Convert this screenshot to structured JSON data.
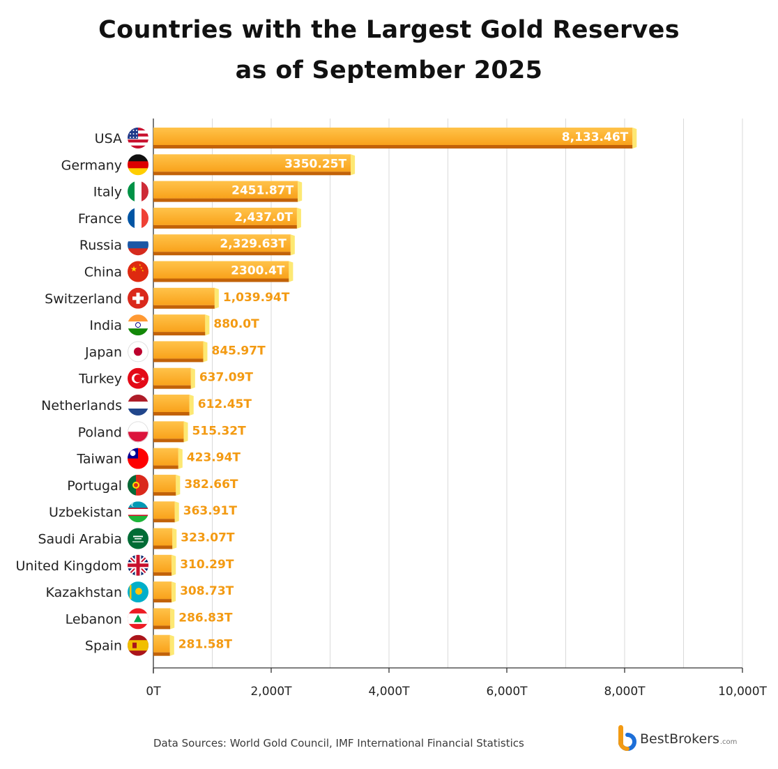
{
  "colors": {
    "bar_top": "#f9a21b",
    "bar_light": "#ffc34a",
    "bar_bottom": "#c26208",
    "bar_end": "#fde873",
    "value_inside": "#ffffff",
    "value_outside": "#f39a12",
    "grid": "#d9d9d9",
    "axis": "#333333",
    "logo_orange": "#f39a12",
    "logo_blue": "#1d6fd8"
  },
  "chart_data": {
    "type": "bar",
    "orientation": "horizontal",
    "title": "Countries with the Largest Gold Reserves as of September 2025",
    "title_lines": [
      "Countries with the Largest Gold Reserves",
      "as of September 2025"
    ],
    "xlim": [
      0,
      10000
    ],
    "xticks": [
      0,
      2000,
      4000,
      6000,
      8000,
      10000
    ],
    "xtick_labels": [
      "0T",
      "2,000T",
      "4,000T",
      "6,000T",
      "8,000T",
      "10,000T"
    ],
    "grid": true,
    "bars": [
      {
        "country": "USA",
        "flag": "usa-flag-icon",
        "value": 8133.46,
        "label": "8,133.46T"
      },
      {
        "country": "Germany",
        "flag": "germany-flag-icon",
        "value": 3350.25,
        "label": "3350.25T"
      },
      {
        "country": "Italy",
        "flag": "italy-flag-icon",
        "value": 2451.87,
        "label": "2451.87T"
      },
      {
        "country": "France",
        "flag": "france-flag-icon",
        "value": 2437.0,
        "label": "2,437.0T"
      },
      {
        "country": "Russia",
        "flag": "russia-flag-icon",
        "value": 2329.63,
        "label": "2,329.63T"
      },
      {
        "country": "China",
        "flag": "china-flag-icon",
        "value": 2300.4,
        "label": "2300.4T"
      },
      {
        "country": "Switzerland",
        "flag": "switzerland-flag-icon",
        "value": 1039.94,
        "label": "1,039.94T"
      },
      {
        "country": "India",
        "flag": "india-flag-icon",
        "value": 880.0,
        "label": "880.0T"
      },
      {
        "country": "Japan",
        "flag": "japan-flag-icon",
        "value": 845.97,
        "label": "845.97T"
      },
      {
        "country": "Turkey",
        "flag": "turkey-flag-icon",
        "value": 637.09,
        "label": "637.09T"
      },
      {
        "country": "Netherlands",
        "flag": "netherlands-flag-icon",
        "value": 612.45,
        "label": "612.45T"
      },
      {
        "country": "Poland",
        "flag": "poland-flag-icon",
        "value": 515.32,
        "label": "515.32T"
      },
      {
        "country": "Taiwan",
        "flag": "taiwan-flag-icon",
        "value": 423.94,
        "label": "423.94T"
      },
      {
        "country": "Portugal",
        "flag": "portugal-flag-icon",
        "value": 382.66,
        "label": "382.66T"
      },
      {
        "country": "Uzbekistan",
        "flag": "uzbekistan-flag-icon",
        "value": 363.91,
        "label": "363.91T"
      },
      {
        "country": "Saudi Arabia",
        "flag": "saudi-arabia-flag-icon",
        "value": 323.07,
        "label": "323.07T"
      },
      {
        "country": "United Kingdom",
        "flag": "united-kingdom-flag-icon",
        "value": 310.29,
        "label": "310.29T"
      },
      {
        "country": "Kazakhstan",
        "flag": "kazakhstan-flag-icon",
        "value": 308.73,
        "label": "308.73T"
      },
      {
        "country": "Lebanon",
        "flag": "lebanon-flag-icon",
        "value": 286.83,
        "label": "286.83T"
      },
      {
        "country": "Spain",
        "flag": "spain-flag-icon",
        "value": 281.58,
        "label": "281.58T"
      }
    ]
  },
  "footer": {
    "source": "Data Sources: World Gold Council, IMF International Financial Statistics",
    "brand": "BestBrokers",
    "brand_suffix": ".com",
    "brand_icon": "bestbrokers-logo-icon"
  }
}
